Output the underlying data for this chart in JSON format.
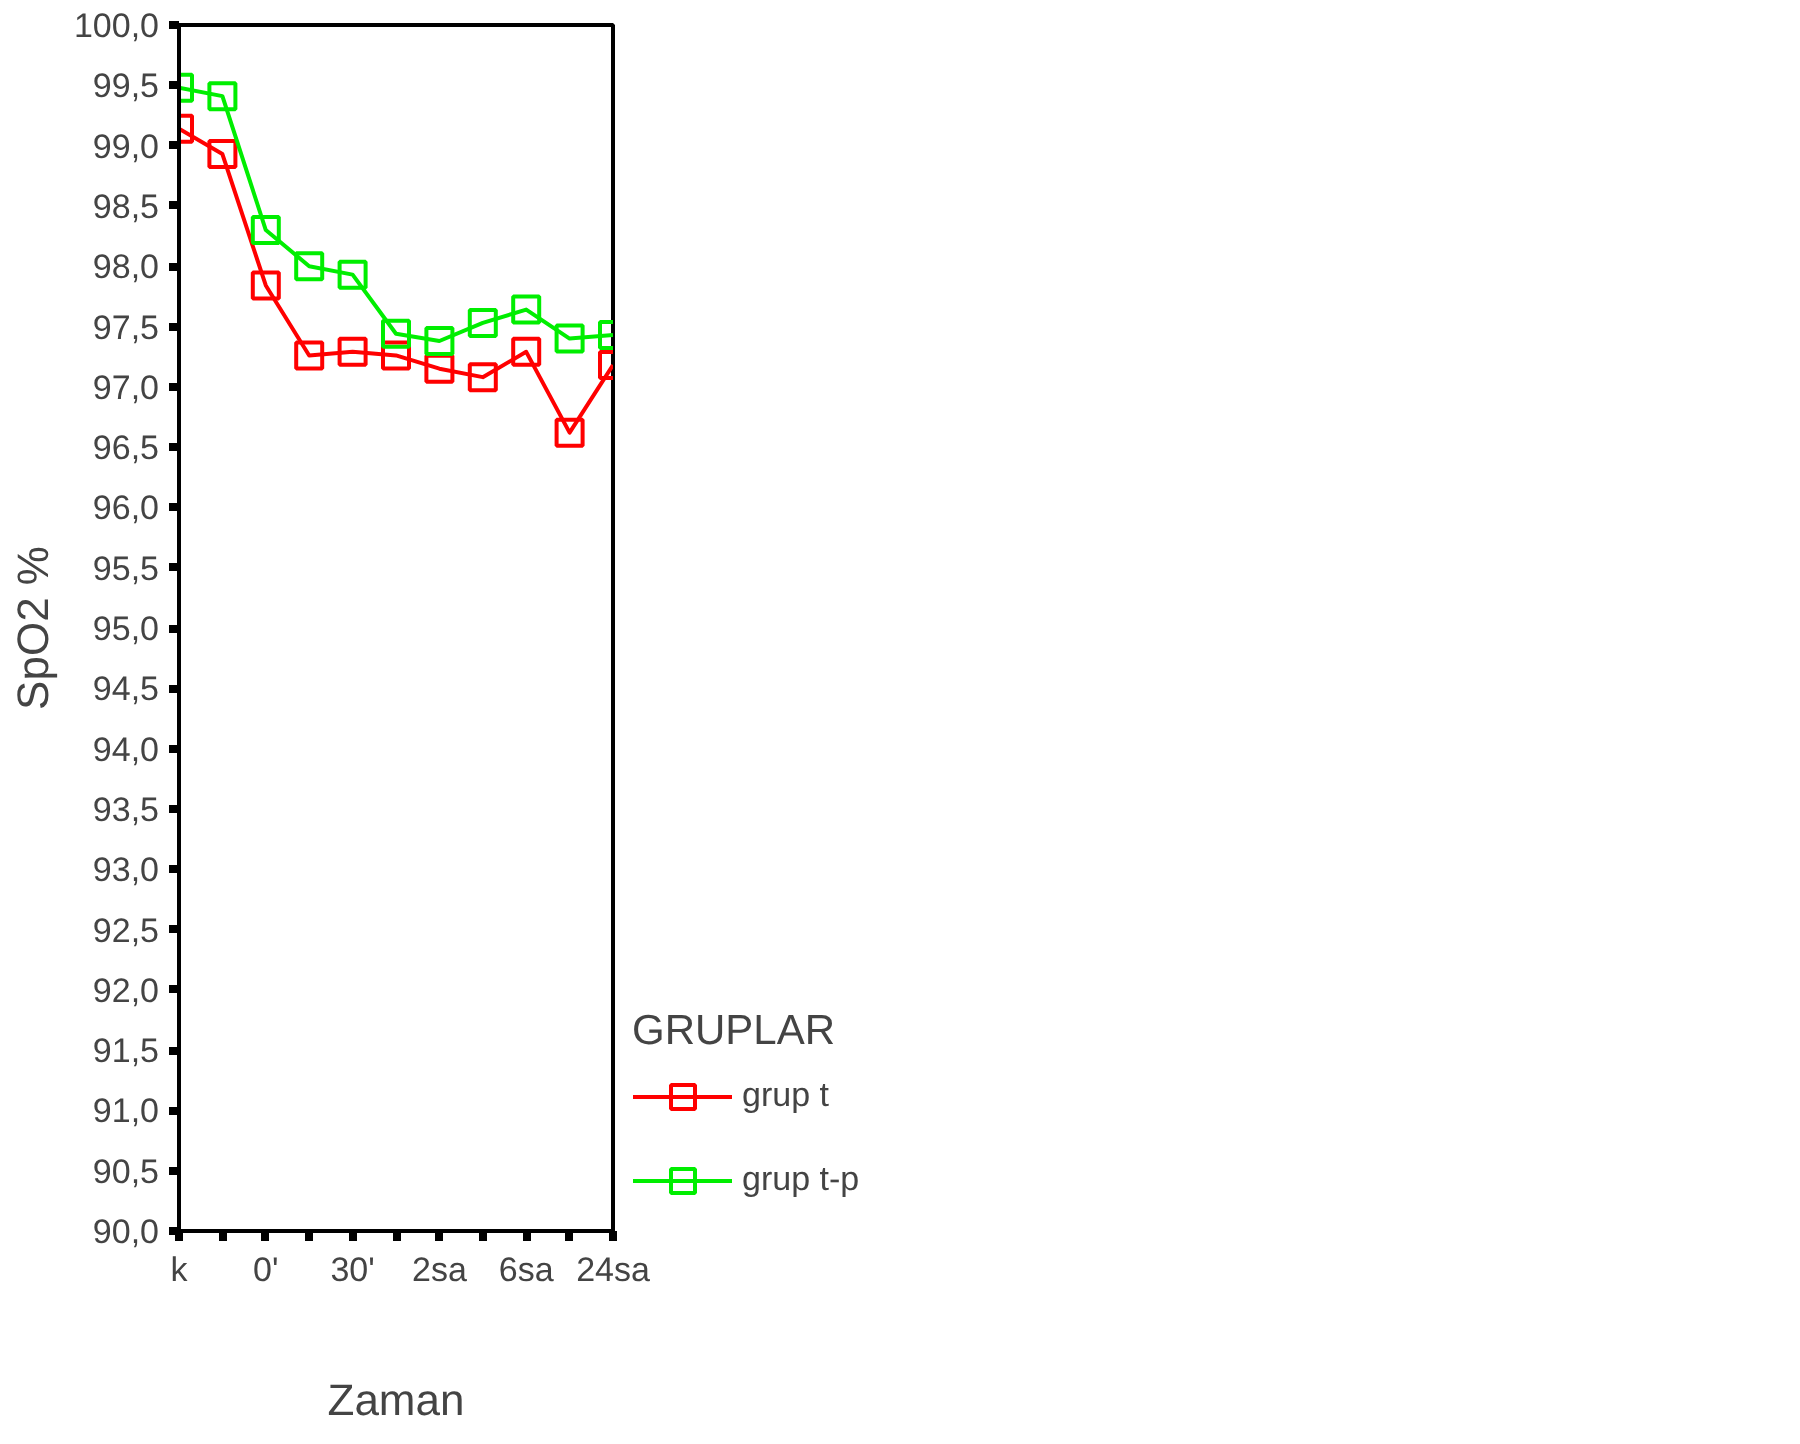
{
  "chart_data": {
    "type": "line",
    "xlabel": "Zaman",
    "ylabel": "SpO2 %",
    "legend_title": "GRUPLAR",
    "legend": "right",
    "marker": "square",
    "line_style": "solid",
    "grid": false,
    "categories": [
      "k",
      null,
      "0'",
      null,
      "30'",
      null,
      "2sa",
      null,
      "6sa",
      null,
      "24sa"
    ],
    "ylim": [
      90.0,
      100.0
    ],
    "yticks": [
      {
        "value": 90.0,
        "label": "90,0"
      },
      {
        "value": 90.5,
        "label": "90,5"
      },
      {
        "value": 91.0,
        "label": "91,0"
      },
      {
        "value": 91.5,
        "label": "91,5"
      },
      {
        "value": 92.0,
        "label": "92,0"
      },
      {
        "value": 92.5,
        "label": "92,5"
      },
      {
        "value": 93.0,
        "label": "93,0"
      },
      {
        "value": 93.5,
        "label": "93,5"
      },
      {
        "value": 94.0,
        "label": "94,0"
      },
      {
        "value": 94.5,
        "label": "94,5"
      },
      {
        "value": 95.0,
        "label": "95,0"
      },
      {
        "value": 95.5,
        "label": "95,5"
      },
      {
        "value": 96.0,
        "label": "96,0"
      },
      {
        "value": 96.5,
        "label": "96,5"
      },
      {
        "value": 97.0,
        "label": "97,0"
      },
      {
        "value": 97.5,
        "label": "97,5"
      },
      {
        "value": 98.0,
        "label": "98,0"
      },
      {
        "value": 98.5,
        "label": "98,5"
      },
      {
        "value": 99.0,
        "label": "99,0"
      },
      {
        "value": 99.5,
        "label": "99,5"
      },
      {
        "value": 100.0,
        "label": "100,0"
      }
    ],
    "series": [
      {
        "name": "grup t",
        "color": "#ff0000",
        "values": [
          99.14,
          98.93,
          97.84,
          97.26,
          97.29,
          97.26,
          97.15,
          97.08,
          97.29,
          96.62,
          97.18
        ]
      },
      {
        "name": "grup t-p",
        "color": "#00ee00",
        "values": [
          99.48,
          99.41,
          98.3,
          98.0,
          97.93,
          97.44,
          97.38,
          97.53,
          97.64,
          97.4,
          97.43
        ]
      }
    ]
  }
}
